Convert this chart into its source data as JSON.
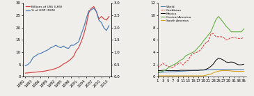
{
  "left": {
    "years": [
      1980,
      1981,
      1982,
      1983,
      1984,
      1985,
      1986,
      1987,
      1988,
      1989,
      1990,
      1991,
      1992,
      1993,
      1994,
      1995,
      1996,
      1997,
      1998,
      1999,
      2000,
      2001,
      2002,
      2003,
      2004,
      2005,
      2006,
      2007,
      2008,
      2009,
      2010,
      2011,
      2012,
      2013
    ],
    "billions": [
      1.5,
      1.6,
      1.7,
      1.8,
      1.9,
      2.0,
      2.1,
      2.2,
      2.4,
      2.6,
      2.8,
      3.1,
      3.4,
      3.8,
      4.4,
      5.2,
      5.7,
      6.4,
      7.2,
      8.3,
      10.5,
      11.8,
      14.2,
      17.0,
      21.0,
      26.0,
      27.8,
      28.5,
      26.5,
      23.5,
      24.5,
      23.5,
      23.0,
      24.5
    ],
    "gdp_pct": [
      0.45,
      0.5,
      0.6,
      0.78,
      0.85,
      0.92,
      0.95,
      1.0,
      1.05,
      1.1,
      1.18,
      1.22,
      1.28,
      1.22,
      1.18,
      1.25,
      1.18,
      1.15,
      1.28,
      1.28,
      1.35,
      1.42,
      1.72,
      2.0,
      2.35,
      2.68,
      2.72,
      2.78,
      2.65,
      2.3,
      2.2,
      1.98,
      1.88,
      2.08
    ],
    "lhs_color": "#d94040",
    "rhs_color": "#4a7ab5",
    "lhs_label": "Billions of US$ (LHS)",
    "rhs_label": "% of GDP (RHS)",
    "ylim_lhs": [
      0,
      30
    ],
    "ylim_rhs": [
      0,
      3.0
    ],
    "yticks_lhs": [
      0,
      5,
      10,
      15,
      20,
      25,
      30
    ],
    "yticks_rhs": [
      0,
      0.5,
      1.0,
      1.5,
      2.0,
      2.5,
      3.0
    ],
    "xtick_labels": [
      "1980",
      "1983",
      "1986",
      "1989",
      "1992",
      "1995",
      "1998",
      "2001",
      "2004",
      "2007",
      "2010",
      "2013"
    ],
    "xtick_positions": [
      1980,
      1983,
      1986,
      1989,
      1992,
      1995,
      1998,
      2001,
      2004,
      2007,
      2010,
      2013
    ],
    "xlim": [
      1979,
      2014
    ]
  },
  "right": {
    "x": [
      1,
      2,
      3,
      4,
      5,
      6,
      7,
      8,
      9,
      10,
      11,
      12,
      13,
      14,
      15,
      16,
      17,
      18,
      19,
      20,
      21,
      22,
      23,
      24,
      25,
      26,
      27,
      28,
      29,
      30,
      31,
      32,
      33,
      34,
      35
    ],
    "world": [
      0.7,
      0.72,
      0.75,
      0.78,
      0.8,
      0.82,
      0.82,
      0.85,
      0.88,
      0.9,
      0.92,
      0.95,
      0.98,
      1.0,
      1.02,
      1.05,
      1.05,
      1.08,
      1.1,
      1.12,
      1.15,
      1.18,
      1.2,
      1.22,
      1.2,
      1.2,
      1.2,
      1.18,
      1.18,
      1.18,
      1.18,
      1.18,
      1.18,
      1.18,
      1.18
    ],
    "caribbean": [
      1.5,
      1.8,
      2.2,
      1.9,
      1.7,
      1.6,
      1.5,
      1.9,
      2.1,
      2.3,
      1.9,
      2.4,
      2.7,
      3.4,
      3.8,
      3.9,
      4.1,
      4.4,
      5.0,
      5.5,
      5.8,
      7.0,
      7.0,
      6.5,
      6.5,
      6.5,
      6.4,
      6.0,
      6.1,
      6.4,
      6.4,
      6.3,
      6.2,
      6.2,
      6.4
    ],
    "mexico": [
      1.0,
      1.0,
      1.05,
      1.05,
      1.0,
      1.0,
      1.0,
      1.0,
      1.0,
      1.05,
      1.05,
      1.05,
      1.05,
      1.05,
      1.05,
      1.05,
      1.05,
      1.1,
      1.1,
      1.2,
      1.4,
      1.7,
      2.1,
      2.7,
      3.0,
      2.9,
      2.7,
      2.4,
      2.35,
      2.4,
      2.35,
      2.1,
      1.95,
      1.95,
      2.05
    ],
    "central_america": [
      0.6,
      0.8,
      0.9,
      1.1,
      1.4,
      1.7,
      1.9,
      2.1,
      2.4,
      2.7,
      2.9,
      3.4,
      3.6,
      3.8,
      4.0,
      4.3,
      4.8,
      5.2,
      5.8,
      6.3,
      6.8,
      7.3,
      8.3,
      9.3,
      9.8,
      9.3,
      8.8,
      8.2,
      7.8,
      7.3,
      7.3,
      7.3,
      7.3,
      7.3,
      7.8
    ],
    "south_america": [
      0.15,
      0.15,
      0.15,
      0.15,
      0.15,
      0.15,
      0.15,
      0.15,
      0.15,
      0.15,
      0.15,
      0.15,
      0.15,
      0.15,
      0.15,
      0.15,
      0.15,
      0.15,
      0.15,
      0.25,
      0.35,
      0.45,
      0.65,
      0.8,
      0.9,
      1.0,
      1.0,
      1.0,
      1.0,
      0.95,
      0.9,
      0.9,
      0.88,
      0.88,
      0.88
    ],
    "world_color": "#4a7ab5",
    "caribbean_color": "#d94040",
    "mexico_color": "#111111",
    "central_america_color": "#5aad3a",
    "south_america_color": "#d4a010",
    "ylim": [
      0,
      12
    ],
    "yticks": [
      0,
      2,
      4,
      6,
      8,
      10,
      12
    ],
    "xtick_positions": [
      1,
      3,
      5,
      7,
      9,
      11,
      13,
      15,
      17,
      19,
      21,
      23,
      25,
      27,
      29,
      31,
      33,
      35
    ],
    "xtick_labels": [
      "1",
      "3",
      "5",
      "7",
      "9",
      "11",
      "13",
      "15",
      "17",
      "19",
      "21",
      "23",
      "25",
      "27",
      "29",
      "31",
      "33",
      "35"
    ],
    "xlim": [
      1,
      36
    ]
  },
  "bg_color": "#f0eeea"
}
